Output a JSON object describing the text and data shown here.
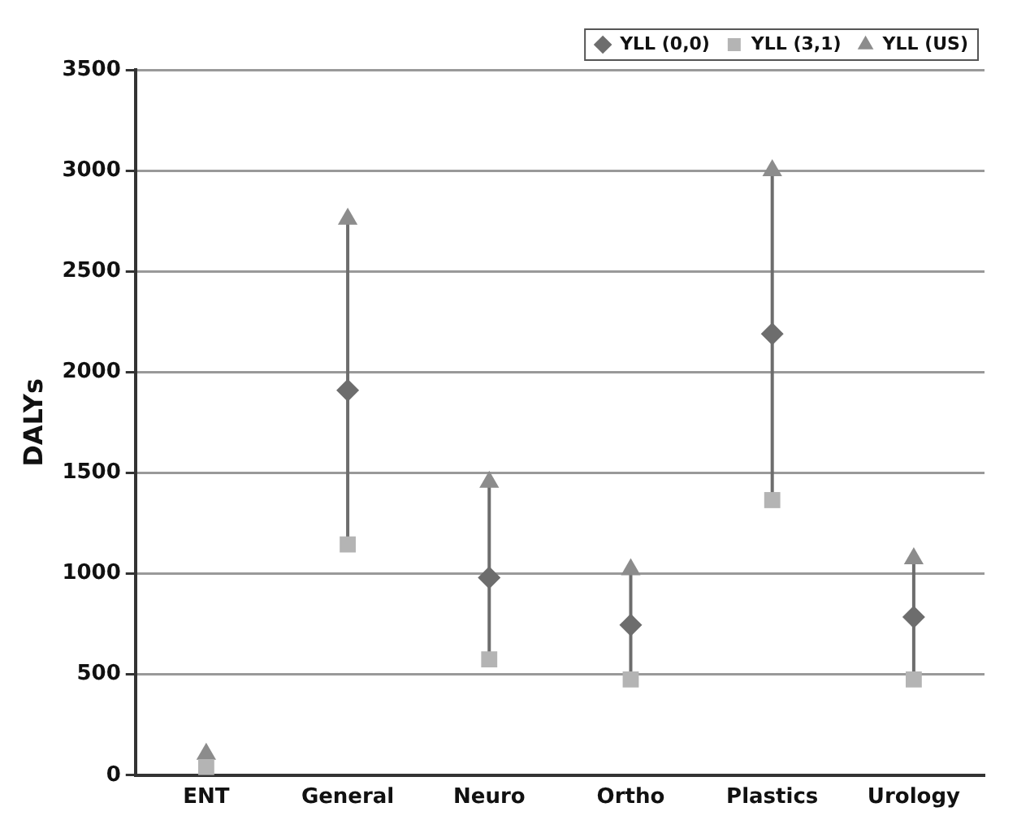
{
  "chart_data": {
    "type": "scatter",
    "ylabel": "DALYs",
    "categories": [
      "ENT",
      "General",
      "Neuro",
      "Ortho",
      "Plastics",
      "Urology"
    ],
    "series": [
      {
        "name": "YLL (0,0)",
        "color": "#6d6d6d",
        "marker": "diamond",
        "values": [
          null,
          1910,
          980,
          745,
          2190,
          785
        ]
      },
      {
        "name": "YLL (3,1)",
        "color": "#b4b4b4",
        "marker": "square",
        "values": [
          40,
          1145,
          575,
          475,
          1365,
          475
        ]
      },
      {
        "name": "YLL (US)",
        "color": "#8c8c8c",
        "marker": "triangle",
        "values": [
          105,
          2760,
          1455,
          1020,
          3000,
          1075
        ]
      }
    ],
    "ylim": [
      0,
      3500
    ],
    "yticks": [
      0,
      500,
      1000,
      1500,
      2000,
      2500,
      3000,
      3500
    ],
    "grid": "y",
    "legend": "top right"
  }
}
